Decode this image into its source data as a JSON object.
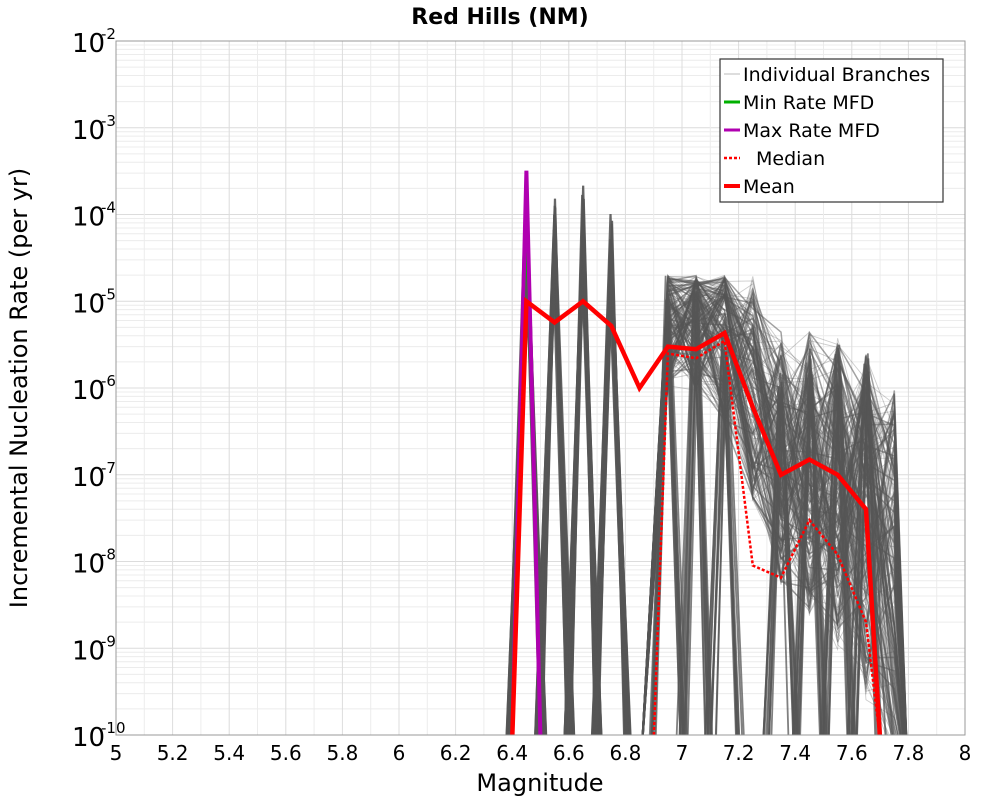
{
  "chart_data": {
    "type": "line",
    "title": "Red Hills (NM)",
    "xlabel": "Magnitude",
    "ylabel": "Incremental Nucleation Rate (per yr)",
    "xlim": [
      5,
      8
    ],
    "ylim": [
      1e-10,
      0.01
    ],
    "y_scale": "log",
    "grid": true,
    "legend_position": "top-right",
    "x_ticks": [
      "5",
      "5.2",
      "5.4",
      "5.6",
      "5.8",
      "6",
      "6.2",
      "6.4",
      "6.6",
      "6.8",
      "7",
      "7.2",
      "7.4",
      "7.6",
      "7.8",
      "8"
    ],
    "y_ticks": [
      {
        "base": "10",
        "exp": "-10"
      },
      {
        "base": "10",
        "exp": "-9"
      },
      {
        "base": "10",
        "exp": "-8"
      },
      {
        "base": "10",
        "exp": "-7"
      },
      {
        "base": "10",
        "exp": "-6"
      },
      {
        "base": "10",
        "exp": "-5"
      },
      {
        "base": "10",
        "exp": "-4"
      },
      {
        "base": "10",
        "exp": "-3"
      },
      {
        "base": "10",
        "exp": "-2"
      }
    ],
    "x": [
      6.35,
      6.45,
      6.55,
      6.65,
      6.75,
      6.85,
      6.95,
      7.05,
      7.15,
      7.25,
      7.35,
      7.45,
      7.55,
      7.65,
      7.75
    ],
    "series": [
      {
        "name": "Individual Branches",
        "color": "#555555",
        "spike_peaks": [
          0.0003,
          0.00022,
          0.00022,
          0.00011
        ],
        "spike_x": [
          6.45,
          6.55,
          6.65,
          6.75
        ],
        "band_range_x": [
          6.9,
          7.8
        ],
        "band_upper": [
          2e-05,
          2e-05,
          1.5e-05,
          6e-06,
          4e-06,
          3.5e-06,
          3.5e-06,
          3e-06
        ],
        "band_upper_x": [
          6.9,
          7.0,
          7.1,
          7.2,
          7.4,
          7.5,
          7.6,
          7.7
        ]
      },
      {
        "name": "Min Rate MFD",
        "color": "#00b000",
        "values": [
          null,
          8e-05,
          null,
          null,
          null,
          null,
          null,
          null,
          null,
          null,
          null,
          null,
          null,
          null,
          null
        ]
      },
      {
        "name": "Max Rate MFD",
        "color": "#b000b0",
        "values": [
          null,
          0.00032,
          null,
          null,
          null,
          null,
          null,
          null,
          null,
          null,
          null,
          null,
          null,
          null,
          null
        ]
      },
      {
        "name": "Median",
        "color": "#ff0000",
        "values": [
          null,
          null,
          null,
          null,
          null,
          null,
          2.5e-06,
          2.2e-06,
          3.5e-06,
          9e-09,
          6.5e-09,
          3e-08,
          1.2e-08,
          2e-09,
          null
        ]
      },
      {
        "name": "Mean",
        "color": "#ff0000",
        "values": [
          null,
          1e-05,
          5.7e-06,
          1e-05,
          5.2e-06,
          1e-06,
          3e-06,
          2.8e-06,
          4.3e-06,
          6e-07,
          1e-07,
          1.5e-07,
          1e-07,
          4e-08,
          null
        ]
      }
    ]
  }
}
